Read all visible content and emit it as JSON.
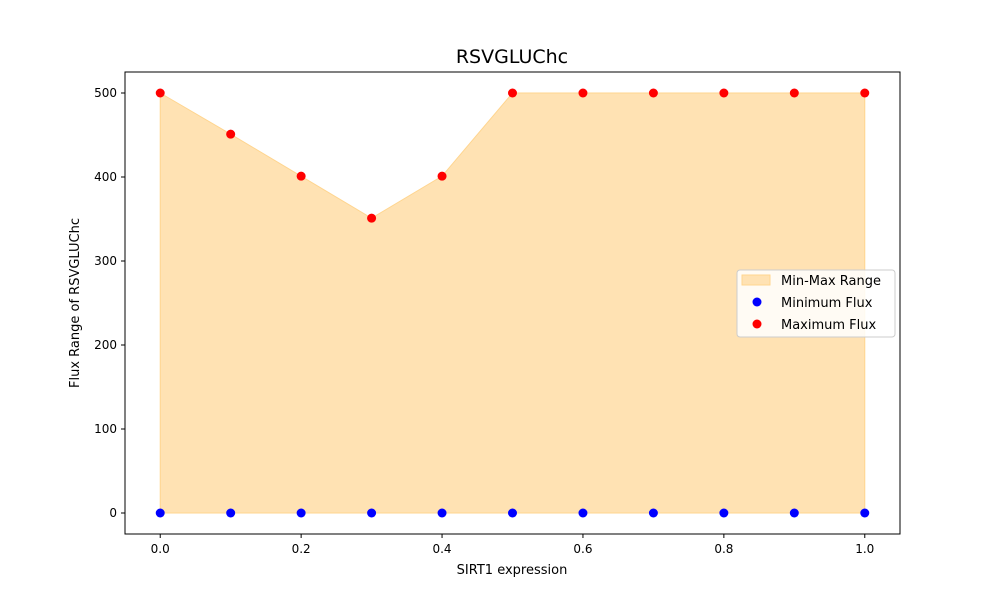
{
  "chart_data": {
    "type": "area",
    "title": "RSVGLUChc",
    "xlabel": "SIRT1 expression",
    "ylabel": "Flux Range of RSVGLUChc",
    "x": [
      0.0,
      0.1,
      0.2,
      0.3,
      0.4,
      0.5,
      0.6,
      0.7,
      0.8,
      0.9,
      1.0
    ],
    "series": [
      {
        "name": "Minimum Flux",
        "kind": "scatter",
        "color": "#0000ff",
        "values": [
          0,
          0,
          0,
          0,
          0,
          0,
          0,
          0,
          0,
          0,
          0
        ]
      },
      {
        "name": "Maximum Flux",
        "kind": "scatter",
        "color": "#ff0000",
        "values": [
          500,
          451,
          401,
          351,
          401,
          500,
          500,
          500,
          500,
          500,
          500
        ]
      }
    ],
    "fill": {
      "name": "Min-Max Range",
      "color": "#ffe2b3",
      "edge_color": "#ffd58f"
    },
    "xlim": [
      -0.05,
      1.05
    ],
    "ylim": [
      -25,
      525
    ],
    "xticks": [
      "0.0",
      "0.2",
      "0.4",
      "0.6",
      "0.8",
      "1.0"
    ],
    "xtick_values": [
      0.0,
      0.2,
      0.4,
      0.6,
      0.8,
      1.0
    ],
    "yticks": [
      "0",
      "100",
      "200",
      "300",
      "400",
      "500"
    ],
    "ytick_values": [
      0,
      100,
      200,
      300,
      400,
      500
    ],
    "grid": false,
    "legend_position": "center-right"
  }
}
